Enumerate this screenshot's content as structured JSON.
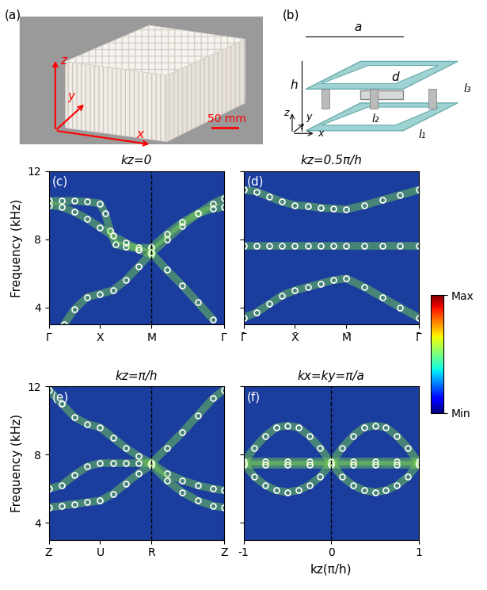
{
  "photo": {
    "label": "(a)",
    "axes": [
      "x",
      "y",
      "z"
    ],
    "scale_bar": "50 mm"
  },
  "unit_cell": {
    "label": "(b)",
    "dimensions": [
      "a",
      "h",
      "d",
      "l₁",
      "l₂",
      "l₃"
    ],
    "axes": [
      "z",
      "y",
      "x"
    ]
  },
  "colorbar": {
    "range": [
      0,
      1
    ],
    "ticks": [
      {
        "value": 1,
        "label": "Max"
      },
      {
        "value": 0,
        "label": "Min"
      }
    ]
  },
  "chart_data": [
    {
      "type": "scatter",
      "panel": "(c)",
      "title": "kz=0",
      "ylabel": "Frequency (kHz)",
      "xlim": [
        0,
        3.414
      ],
      "ylim": [
        3,
        12
      ],
      "xticks": [
        {
          "value": 0,
          "label": "Γ"
        },
        {
          "value": 1,
          "label": "X"
        },
        {
          "value": 2,
          "label": "M"
        },
        {
          "value": 3.414,
          "label": "Γ"
        }
      ],
      "yticks": [
        4,
        8,
        12
      ],
      "vline": 2,
      "marker": "o",
      "color": "#ffffff",
      "tick_labels": true,
      "series": [
        {
          "x": [
            0,
            0.25,
            0.5,
            0.75,
            1.0,
            1.1,
            1.2,
            1.3,
            1.5,
            1.75,
            2.0
          ],
          "values": [
            10.25,
            10.25,
            10.25,
            10.2,
            10.1,
            9.5,
            8.5,
            7.7,
            7.55,
            7.5,
            7.5
          ]
        },
        {
          "x": [
            0,
            0.25,
            0.5,
            0.75,
            1.0,
            1.25,
            1.5,
            1.75,
            2.0
          ],
          "values": [
            10.0,
            9.9,
            9.6,
            9.2,
            8.7,
            8.2,
            7.8,
            7.4,
            7.1
          ]
        },
        {
          "x": [
            0.3,
            0.5,
            0.75,
            1.0,
            1.25,
            1.5,
            1.75,
            2.0
          ],
          "values": [
            3.0,
            3.9,
            4.6,
            4.8,
            5.0,
            5.6,
            6.4,
            7.2
          ]
        },
        {
          "x": [
            2.0,
            2.3,
            2.6,
            2.9,
            3.2,
            3.414
          ],
          "values": [
            7.2,
            8.0,
            8.8,
            9.5,
            10.1,
            10.4
          ]
        },
        {
          "x": [
            2.0,
            2.3,
            2.6,
            2.9,
            3.2,
            3.414
          ],
          "values": [
            7.5,
            8.3,
            9.0,
            9.5,
            9.8,
            9.9
          ]
        },
        {
          "x": [
            2.0,
            2.3,
            2.6,
            2.9,
            3.2
          ],
          "values": [
            7.2,
            6.2,
            5.3,
            4.3,
            3.3
          ]
        }
      ]
    },
    {
      "type": "scatter",
      "panel": "(d)",
      "title": "kz=0.5π/h",
      "xlim": [
        0,
        3.414
      ],
      "ylim": [
        3,
        12
      ],
      "xticks": [
        {
          "value": 0,
          "label": "Γ̄"
        },
        {
          "value": 1,
          "label": "X̄"
        },
        {
          "value": 2,
          "label": "M̄"
        },
        {
          "value": 3.414,
          "label": "Γ̄"
        }
      ],
      "yticks": [
        4,
        8,
        12
      ],
      "marker": "o",
      "color": "#ffffff",
      "tick_labels": "x",
      "series": [
        {
          "x": [
            0,
            0.25,
            0.5,
            0.75,
            1.0,
            1.25,
            1.5,
            1.75,
            2.0,
            2.35,
            2.7,
            3.05,
            3.414
          ],
          "values": [
            10.9,
            10.8,
            10.5,
            10.2,
            10.0,
            9.95,
            9.85,
            9.8,
            9.75,
            10.0,
            10.3,
            10.6,
            10.9
          ]
        },
        {
          "x": [
            0,
            0.25,
            0.5,
            0.75,
            1.0,
            1.25,
            1.5,
            1.75,
            2.0,
            2.35,
            2.7,
            3.05,
            3.414
          ],
          "values": [
            7.6,
            7.6,
            7.6,
            7.6,
            7.6,
            7.6,
            7.6,
            7.6,
            7.6,
            7.6,
            7.6,
            7.6,
            7.6
          ]
        },
        {
          "x": [
            0,
            0.25,
            0.5,
            0.75,
            1.0,
            1.25,
            1.5,
            1.75,
            2.0,
            2.35,
            2.7,
            3.05,
            3.414
          ],
          "values": [
            3.4,
            3.7,
            4.2,
            4.7,
            5.0,
            5.2,
            5.4,
            5.6,
            5.7,
            5.2,
            4.6,
            4.0,
            3.4
          ]
        }
      ]
    },
    {
      "type": "scatter",
      "panel": "(e)",
      "title": "kz=π/h",
      "ylabel": "Frequency (kHz)",
      "xlim": [
        0,
        3.414
      ],
      "ylim": [
        3,
        12
      ],
      "xticks": [
        {
          "value": 0,
          "label": "Z"
        },
        {
          "value": 1,
          "label": "U"
        },
        {
          "value": 2,
          "label": "R"
        },
        {
          "value": 3.414,
          "label": "Z"
        }
      ],
      "yticks": [
        4,
        8,
        12
      ],
      "vline": 2,
      "marker": "o",
      "color": "#ffffff",
      "tick_labels": true,
      "series": [
        {
          "x": [
            0,
            0.25,
            0.5,
            0.75,
            1.0,
            1.25,
            1.5,
            1.75,
            2.0
          ],
          "values": [
            11.8,
            11.0,
            10.2,
            9.8,
            9.6,
            9.0,
            8.4,
            7.9,
            7.5
          ]
        },
        {
          "x": [
            0,
            0.25,
            0.5,
            0.75,
            1.0,
            1.25,
            1.5,
            1.75,
            2.0
          ],
          "values": [
            6.0,
            6.2,
            6.8,
            7.3,
            7.5,
            7.5,
            7.5,
            7.5,
            7.5
          ]
        },
        {
          "x": [
            0,
            0.25,
            0.5,
            0.75,
            1.0,
            1.25,
            1.5,
            1.75,
            2.0
          ],
          "values": [
            4.9,
            5.0,
            5.1,
            5.2,
            5.3,
            5.7,
            6.3,
            6.9,
            7.4
          ]
        },
        {
          "x": [
            2.0,
            2.3,
            2.6,
            2.9,
            3.2,
            3.414
          ],
          "values": [
            7.5,
            8.4,
            9.3,
            10.3,
            11.3,
            11.8
          ]
        },
        {
          "x": [
            2.0,
            2.3,
            2.6,
            2.9,
            3.2,
            3.414
          ],
          "values": [
            7.5,
            6.9,
            6.5,
            6.2,
            6.0,
            5.9
          ]
        },
        {
          "x": [
            2.0,
            2.3,
            2.6,
            2.9,
            3.2,
            3.414
          ],
          "values": [
            7.4,
            6.5,
            5.8,
            5.3,
            5.0,
            4.9
          ]
        }
      ]
    },
    {
      "type": "scatter",
      "panel": "(f)",
      "title": "kx=ky=π/a",
      "xlabel": "kz(π/h)",
      "xlim": [
        -1,
        1
      ],
      "ylim": [
        3,
        12
      ],
      "xticks": [
        -1,
        0,
        1
      ],
      "yticks": [
        4,
        8,
        12
      ],
      "vline": 0,
      "marker": "o",
      "color": "#ffffff",
      "tick_labels": "x",
      "series": [
        {
          "x": [
            -1,
            -0.875,
            -0.75,
            -0.625,
            -0.5,
            -0.375,
            -0.25,
            -0.125,
            0,
            0.125,
            0.25,
            0.375,
            0.5,
            0.625,
            0.75,
            0.875,
            1
          ],
          "values": [
            7.5,
            8.4,
            9.1,
            9.6,
            9.7,
            9.6,
            9.1,
            8.4,
            7.5,
            8.4,
            9.1,
            9.6,
            9.7,
            9.6,
            9.1,
            8.4,
            7.5
          ]
        },
        {
          "x": [
            -1,
            -0.875,
            -0.75,
            -0.625,
            -0.5,
            -0.375,
            -0.25,
            -0.125,
            0,
            0.125,
            0.25,
            0.375,
            0.5,
            0.625,
            0.75,
            0.875,
            1
          ],
          "values": [
            7.5,
            6.7,
            6.2,
            5.9,
            5.8,
            5.9,
            6.2,
            6.7,
            7.5,
            6.7,
            6.2,
            5.9,
            5.8,
            5.9,
            6.2,
            6.7,
            7.5
          ]
        },
        {
          "x": [
            -1,
            -0.75,
            -0.5,
            -0.25,
            0,
            0.25,
            0.5,
            0.75,
            1
          ],
          "values": [
            7.6,
            7.6,
            7.6,
            7.6,
            7.6,
            7.6,
            7.6,
            7.6,
            7.6
          ]
        },
        {
          "x": [
            -1,
            -0.75,
            -0.5,
            -0.25,
            0,
            0.25,
            0.5,
            0.75,
            1
          ],
          "values": [
            7.4,
            7.4,
            7.4,
            7.4,
            7.4,
            7.4,
            7.4,
            7.4,
            7.4
          ]
        }
      ]
    }
  ]
}
